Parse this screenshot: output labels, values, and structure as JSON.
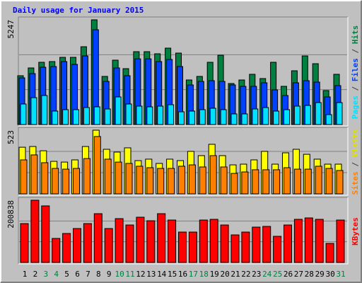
{
  "chart_data": [
    {
      "type": "bar",
      "title": "Daily usage for January 2015",
      "ylim": [
        0,
        5247
      ],
      "yticks": [
        5247
      ],
      "grid_divisions": 3,
      "legend_separator": " / ",
      "series": [
        {
          "name": "Pages",
          "color": "#00e0ff",
          "values": [
            1028,
            1347,
            1454,
            674,
            745,
            745,
            851,
            886,
            780,
            1383,
            1028,
            922,
            886,
            922,
            993,
            638,
            674,
            745,
            815,
            745,
            532,
            532,
            780,
            851,
            674,
            745,
            922,
            957,
            1099,
            496,
            1099
          ]
        },
        {
          "name": "Files",
          "color": "#0040ff",
          "values": [
            2340,
            2552,
            2871,
            2907,
            3155,
            3013,
            3439,
            4750,
            2162,
            2836,
            2446,
            3290,
            3290,
            3155,
            3261,
            2907,
            1985,
            2162,
            2198,
            2162,
            1985,
            1914,
            1914,
            2091,
            1737,
            1453,
            2091,
            2198,
            2127,
            1383,
            1950
          ]
        },
        {
          "name": "Hits",
          "color": "#008040",
          "values": [
            2446,
            2836,
            3119,
            3155,
            3367,
            3367,
            3899,
            5247,
            2411,
            3226,
            2800,
            3651,
            3651,
            3545,
            3828,
            3580,
            2233,
            2411,
            3119,
            3474,
            2056,
            2233,
            2517,
            2304,
            3119,
            1914,
            2694,
            3438,
            3048,
            1702,
            2517
          ]
        }
      ]
    },
    {
      "type": "bar",
      "ylim": [
        0,
        523
      ],
      "yticks": [
        523
      ],
      "grid_divisions": 3,
      "legend_separator": " / ",
      "series": [
        {
          "name": "Sites",
          "color": "#ff8000",
          "values": [
            279,
            320,
            256,
            209,
            203,
            209,
            290,
            471,
            285,
            261,
            250,
            227,
            215,
            209,
            209,
            227,
            238,
            221,
            314,
            221,
            168,
            180,
            198,
            198,
            198,
            215,
            203,
            203,
            227,
            209,
            192
          ]
        },
        {
          "name": "Visits",
          "color": "#ffff00",
          "values": [
            383,
            389,
            354,
            267,
            261,
            279,
            389,
            523,
            366,
            343,
            378,
            273,
            285,
            250,
            285,
            273,
            349,
            314,
            407,
            314,
            238,
            244,
            279,
            349,
            244,
            337,
            366,
            325,
            285,
            244,
            244
          ]
        }
      ]
    },
    {
      "type": "bar",
      "ylim": [
        0,
        200838
      ],
      "yticks": [
        200838
      ],
      "grid_divisions": 3,
      "categories": [
        "1",
        "2",
        "3",
        "4",
        "5",
        "6",
        "7",
        "8",
        "9",
        "10",
        "11",
        "12",
        "13",
        "14",
        "15",
        "16",
        "17",
        "18",
        "19",
        "20",
        "21",
        "22",
        "23",
        "24",
        "25",
        "26",
        "27",
        "28",
        "29",
        "30",
        "31"
      ],
      "category_colors": [
        "#000000",
        "#000000",
        "#008040",
        "#008040",
        "#000000",
        "#000000",
        "#000000",
        "#000000",
        "#000000",
        "#008040",
        "#008040",
        "#000000",
        "#000000",
        "#000000",
        "#000000",
        "#000000",
        "#008040",
        "#008040",
        "#000000",
        "#000000",
        "#000000",
        "#000000",
        "#000000",
        "#008040",
        "#008040",
        "#000000",
        "#000000",
        "#000000",
        "#000000",
        "#000000",
        "#008040"
      ],
      "series": [
        {
          "name": "KBytes",
          "color": "#ff0000",
          "values": [
            125510,
            200838,
            182580,
            77600,
            93570,
            109550,
            125510,
            157460,
            109550,
            141500,
            120950,
            146060,
            134650,
            157460,
            136930,
            98130,
            98130,
            136930,
            139220,
            120950,
            89000,
            98130,
            114100,
            116390,
            84440,
            120950,
            139220,
            143780,
            139220,
            61620,
            136930
          ]
        }
      ]
    }
  ]
}
